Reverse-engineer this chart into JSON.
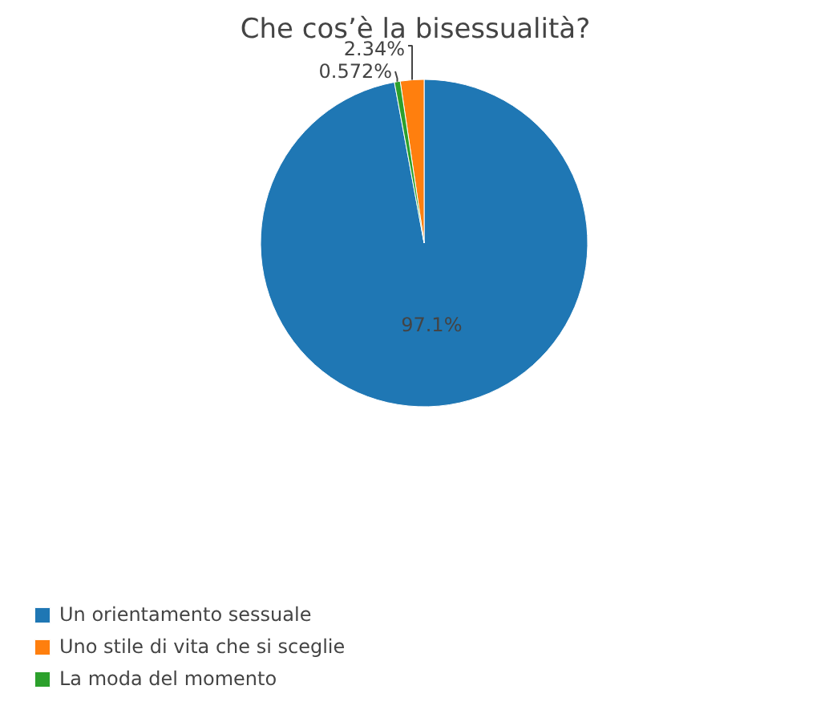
{
  "chart_data": {
    "type": "pie",
    "title": "Che cos’è la bisessualità?",
    "categories": [
      "Un orientamento sessuale",
      "Uno stile di vita che si sceglie",
      "La moda del momento"
    ],
    "values": [
      97.1,
      2.34,
      0.572
    ],
    "colors": [
      "#1f77b4",
      "#ff7f0e",
      "#2ca02c"
    ],
    "value_labels": [
      "97.1%",
      "2.34%",
      "0.572%"
    ],
    "legend": "bottom left"
  }
}
